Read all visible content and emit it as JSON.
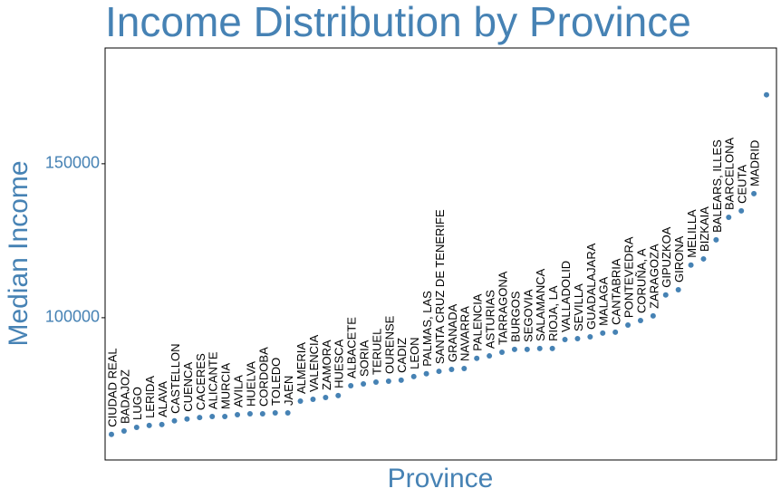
{
  "chart_data": {
    "type": "scatter",
    "title": "Income Distribution by Province",
    "x_label": "Province",
    "y_label": "Median Income",
    "color": "#4682b4",
    "categories": [
      "CIUDAD REAL",
      "BADAJOZ",
      "LUGO",
      "LERIDA",
      "ALAVA",
      "CASTELLON",
      "CUENCA",
      "CACERES",
      "ALICANTE",
      "MURCIA",
      "AVILA",
      "HUELVA",
      "CORDOBA",
      "TOLEDO",
      "JAEN",
      "ALMERIA",
      "VALENCIA",
      "ZAMORA",
      "HUESCA",
      "ALBACETE",
      "SORIA",
      "TERUEL",
      "OURENSE",
      "CADIZ",
      "LEON",
      "PALMAS, LAS",
      "SANTA CRUZ DE TENERIFE",
      "GRANADA",
      "NAVARRA",
      "PALENCIA",
      "ASTURIAS",
      "TARRAGONA",
      "BURGOS",
      "SEGOVIA",
      "SALAMANCA",
      "RIOJA, LA",
      "VALLADOLID",
      "SEVILLA",
      "GUADALAJARA",
      "MALAGA",
      "CANTABRIA",
      "PONTEVEDRA",
      "CORUÑA, A",
      "ZARAGOZA",
      "GIPUZKOA",
      "GIRONA",
      "MELILLA",
      "BIZKAIA",
      "BALEARS, ILLES",
      "BARCELONA",
      "CEUTA",
      "MADRID",
      null
    ],
    "values": [
      62100,
      63200,
      64400,
      65000,
      65300,
      66500,
      67100,
      67600,
      67900,
      67900,
      68500,
      68800,
      68800,
      69100,
      69100,
      72900,
      73500,
      74100,
      74700,
      77900,
      78500,
      79100,
      79400,
      79700,
      80900,
      81800,
      82600,
      83200,
      83500,
      86800,
      87600,
      88800,
      89700,
      89700,
      90000,
      90000,
      92900,
      93200,
      93800,
      95000,
      95300,
      97600,
      99100,
      100600,
      107400,
      109100,
      117100,
      119100,
      125300,
      132600,
      134700,
      140300,
      172400
    ],
    "ylim": [
      53800,
      187600
    ],
    "yticks": [
      100000,
      150000
    ]
  }
}
